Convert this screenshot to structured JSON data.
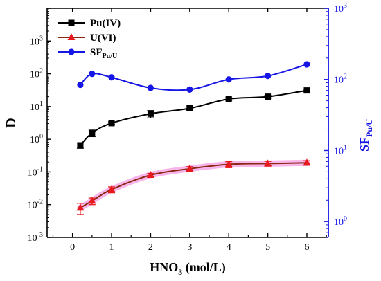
{
  "chart_data": {
    "type": "line",
    "xlabel": {
      "main": "HNO",
      "sub": "3",
      "rest": " (mol/L)"
    },
    "ylabel": "D",
    "y2label": {
      "main": "SF",
      "sub": "Pu/U"
    },
    "xlim": [
      -0.65,
      6.55
    ],
    "ylim": [
      0.001,
      10000
    ],
    "y2lim": [
      0.6,
      1000
    ],
    "yscale": "log",
    "y2scale": "log",
    "grid": false,
    "legend_position": "top-left",
    "x_ticks": [
      "0",
      "1",
      "2",
      "3",
      "4",
      "5",
      "6"
    ],
    "y_ticks": [
      {
        "base": "10",
        "exp": "-3",
        "value": 0.001
      },
      {
        "base": "10",
        "exp": "-2",
        "value": 0.01
      },
      {
        "base": "10",
        "exp": "-1",
        "value": 0.1
      },
      {
        "base": "10",
        "exp": "0",
        "value": 1
      },
      {
        "base": "10",
        "exp": "1",
        "value": 10
      },
      {
        "base": "10",
        "exp": "2",
        "value": 100
      },
      {
        "base": "10",
        "exp": "3",
        "value": 1000
      }
    ],
    "y2_ticks": [
      {
        "base": "10",
        "exp": "0",
        "value": 1
      },
      {
        "base": "10",
        "exp": "1",
        "value": 10
      },
      {
        "base": "10",
        "exp": "2",
        "value": 100
      },
      {
        "base": "10",
        "exp": "3",
        "value": 1000
      }
    ],
    "series": [
      {
        "name": "Pu(IV)",
        "axis": "left",
        "marker": "square",
        "color": "#000000",
        "x": [
          0.2,
          0.5,
          1,
          2,
          3,
          4,
          5,
          6
        ],
        "y": [
          0.65,
          1.55,
          3.1,
          6.0,
          8.8,
          17,
          20,
          31
        ],
        "err": [
          0.12,
          0.35,
          0.3,
          1.5,
          1.0,
          1.5,
          1.8,
          3.0
        ]
      },
      {
        "name": "U(VI)",
        "axis": "left",
        "marker": "triangle",
        "color": "#e8191c",
        "x": [
          0.2,
          0.5,
          1,
          2,
          3,
          4,
          5,
          6
        ],
        "y": [
          0.008,
          0.013,
          0.029,
          0.08,
          0.125,
          0.17,
          0.18,
          0.19
        ],
        "err": [
          0.003,
          0.003,
          0.006,
          0.01,
          0.02,
          0.035,
          0.03,
          0.03
        ]
      },
      {
        "name_main": "SF",
        "name_sub": "Pu/U",
        "axis": "right",
        "marker": "circle",
        "color": "#1515e6",
        "x": [
          0.2,
          0.5,
          1,
          2,
          3,
          4,
          5,
          6
        ],
        "y": [
          84,
          120,
          107,
          76,
          72,
          100,
          112,
          163
        ]
      }
    ],
    "fit_curve_color": "#8b2a12",
    "fit_glow_color": "#f7a8e8",
    "axis_color_right": "#1515e6"
  }
}
